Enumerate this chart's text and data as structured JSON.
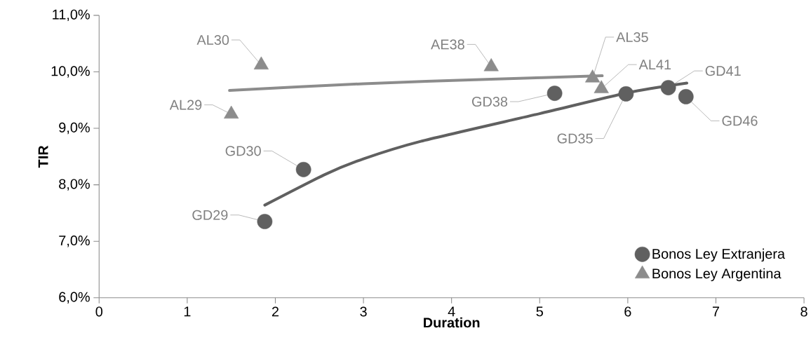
{
  "chart_data": {
    "type": "scatter",
    "xlabel": "Duration",
    "ylabel": "TIR",
    "xlim": [
      0,
      8
    ],
    "xticks": [
      0,
      1,
      2,
      3,
      4,
      5,
      6,
      7,
      8
    ],
    "ylim": [
      6,
      11
    ],
    "yticks": [
      {
        "value": 6,
        "label": "6,0%"
      },
      {
        "value": 7,
        "label": "7,0%"
      },
      {
        "value": 8,
        "label": "8,0%"
      },
      {
        "value": 9,
        "label": "9,0%"
      },
      {
        "value": 10,
        "label": "10,0%"
      },
      {
        "value": 11,
        "label": "11,0%"
      }
    ],
    "legend": "bottom right",
    "grid": false,
    "series": [
      {
        "name": "Bonos Ley Extranjera",
        "marker": "circle",
        "color": "#606060",
        "x": [
          1.88,
          2.32,
          5.17,
          5.98,
          6.46,
          6.66
        ],
        "values": [
          7.35,
          8.27,
          9.62,
          9.61,
          9.72,
          9.56
        ]
      },
      {
        "name": "Bonos Ley Argentina",
        "marker": "triangle",
        "color": "#8c8c8c",
        "x": [
          1.5,
          1.84,
          4.45,
          5.6,
          5.7
        ],
        "values": [
          9.25,
          10.12,
          10.09,
          9.89,
          9.7
        ]
      },
      {
        "type": "line",
        "marker": "none",
        "color": "#606060",
        "x": [
          1.88,
          2.56,
          3.0,
          3.65,
          5.0,
          6.0,
          6.67
        ],
        "values": [
          7.64,
          8.18,
          8.46,
          8.77,
          9.26,
          9.63,
          9.8
        ]
      },
      {
        "type": "line",
        "marker": "none",
        "color": "#8c8c8c",
        "x": [
          1.48,
          3.0,
          4.45,
          5.71
        ],
        "values": [
          9.67,
          9.79,
          9.87,
          9.93
        ]
      }
    ],
    "annotations": [
      {
        "text": "GD29",
        "x": 1.88,
        "y": 7.35
      },
      {
        "text": "GD30",
        "x": 2.32,
        "y": 8.27
      },
      {
        "text": "GD38",
        "x": 5.17,
        "y": 9.62
      },
      {
        "text": "GD35",
        "x": 5.98,
        "y": 9.61
      },
      {
        "text": "GD41",
        "x": 6.46,
        "y": 9.72
      },
      {
        "text": "GD46",
        "x": 6.66,
        "y": 9.56
      },
      {
        "text": "AL29",
        "x": 1.5,
        "y": 9.25
      },
      {
        "text": "AL30",
        "x": 1.84,
        "y": 10.12
      },
      {
        "text": "AE38",
        "x": 4.45,
        "y": 10.09
      },
      {
        "text": "AL35",
        "x": 5.6,
        "y": 9.89
      },
      {
        "text": "AL41",
        "x": 5.7,
        "y": 9.7
      }
    ]
  }
}
